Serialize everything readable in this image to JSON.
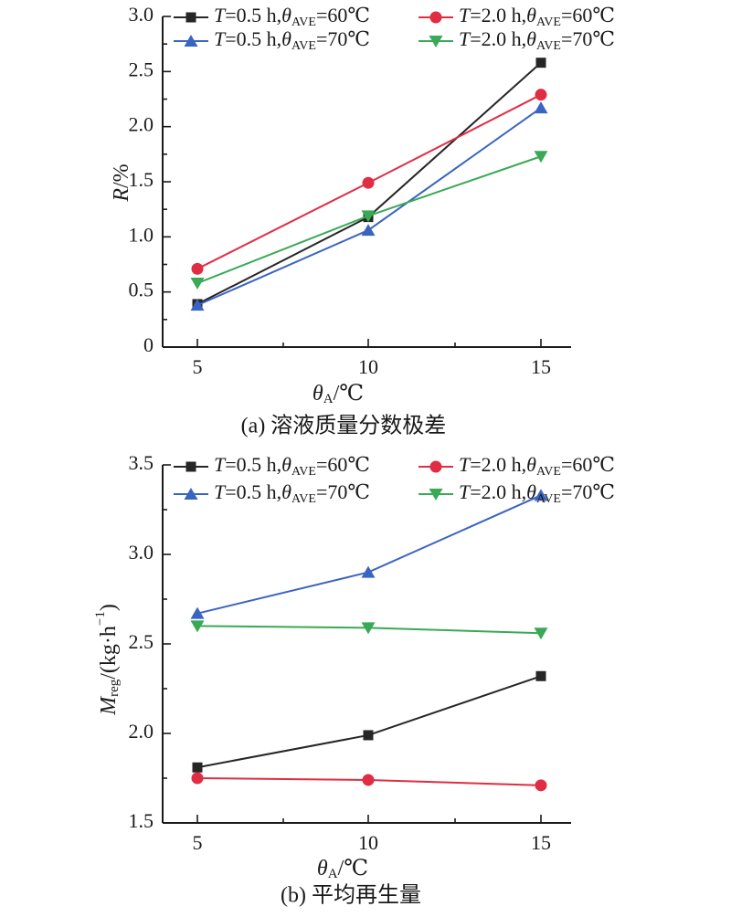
{
  "chart_data": [
    {
      "type": "line",
      "caption": "(a) 溶液质量分数极差",
      "xlabel": {
        "italic": "θ",
        "sub": "A",
        "unit": "/℃"
      },
      "ylabel": {
        "italic": "R",
        "sub": "",
        "unit": "/%"
      },
      "xticks": [
        "5",
        "10",
        "15"
      ],
      "yticks": [
        "0",
        "0.5",
        "1.0",
        "1.5",
        "2.0",
        "2.5",
        "3.0"
      ],
      "x": [
        5,
        10,
        15
      ],
      "xlim": [
        4,
        16
      ],
      "ylim": [
        0,
        3.0
      ],
      "legend_position": "top",
      "series": [
        {
          "name": "T=0.5 h,θAVE=60℃",
          "label_parts": {
            "v": "T",
            "eq": "=0.5 h,",
            "th": "θ",
            "sub": "AVE",
            "rest": "=60℃"
          },
          "color": "#262626",
          "marker": "square",
          "values": [
            0.39,
            1.18,
            2.58
          ]
        },
        {
          "name": "T=2.0 h,θAVE=60℃",
          "label_parts": {
            "v": "T",
            "eq": "=2.0 h,",
            "th": "θ",
            "sub": "AVE",
            "rest": "=60℃"
          },
          "color": "#e02d43",
          "marker": "circle",
          "values": [
            0.71,
            1.49,
            2.29
          ]
        },
        {
          "name": "T=0.5 h,θAVE=70℃",
          "label_parts": {
            "v": "T",
            "eq": "=0.5 h,",
            "th": "θ",
            "sub": "AVE",
            "rest": "=70℃"
          },
          "color": "#3a64c2",
          "marker": "triangle-up",
          "values": [
            0.38,
            1.06,
            2.17
          ]
        },
        {
          "name": "T=2.0 h,θAVE=70℃",
          "label_parts": {
            "v": "T",
            "eq": "=2.0 h,",
            "th": "θ",
            "sub": "AVE",
            "rest": "=70℃"
          },
          "color": "#3aa956",
          "marker": "triangle-down",
          "values": [
            0.58,
            1.19,
            1.73
          ]
        }
      ]
    },
    {
      "type": "line",
      "caption": "(b) 平均再生量",
      "xlabel": {
        "italic": "θ",
        "sub": "A",
        "unit": "/℃"
      },
      "ylabel": {
        "italic": "M",
        "sub": "reg",
        "unit": "/(kg·h",
        "sup": "−1",
        "close": ")"
      },
      "xticks": [
        "5",
        "10",
        "15"
      ],
      "yticks": [
        "1.5",
        "2.0",
        "2.5",
        "3.0",
        "3.5"
      ],
      "x": [
        5,
        10,
        15
      ],
      "xlim": [
        4,
        16
      ],
      "ylim": [
        1.5,
        3.5
      ],
      "legend_position": "top",
      "series": [
        {
          "name": "T=0.5 h,θAVE=60℃",
          "label_parts": {
            "v": "T",
            "eq": "=0.5 h,",
            "th": "θ",
            "sub": "AVE",
            "rest": "=60℃"
          },
          "color": "#262626",
          "marker": "square",
          "values": [
            1.81,
            1.99,
            2.32
          ]
        },
        {
          "name": "T=2.0 h,θAVE=60℃",
          "label_parts": {
            "v": "T",
            "eq": "=2.0 h,",
            "th": "θ",
            "sub": "AVE",
            "rest": "=60℃"
          },
          "color": "#e02d43",
          "marker": "circle",
          "values": [
            1.75,
            1.74,
            1.71
          ]
        },
        {
          "name": "T=0.5 h,θAVE=70℃",
          "label_parts": {
            "v": "T",
            "eq": "=0.5 h,",
            "th": "θ",
            "sub": "AVE",
            "rest": "=70℃"
          },
          "color": "#3a64c2",
          "marker": "triangle-up",
          "values": [
            2.67,
            2.9,
            3.33
          ]
        },
        {
          "name": "T=2.0 h,θAVE=70℃",
          "label_parts": {
            "v": "T",
            "eq": "=2.0 h,",
            "th": "θ",
            "sub": "AVE",
            "rest": "=70℃"
          },
          "color": "#3aa956",
          "marker": "triangle-down",
          "values": [
            2.6,
            2.59,
            2.56
          ]
        }
      ]
    }
  ]
}
